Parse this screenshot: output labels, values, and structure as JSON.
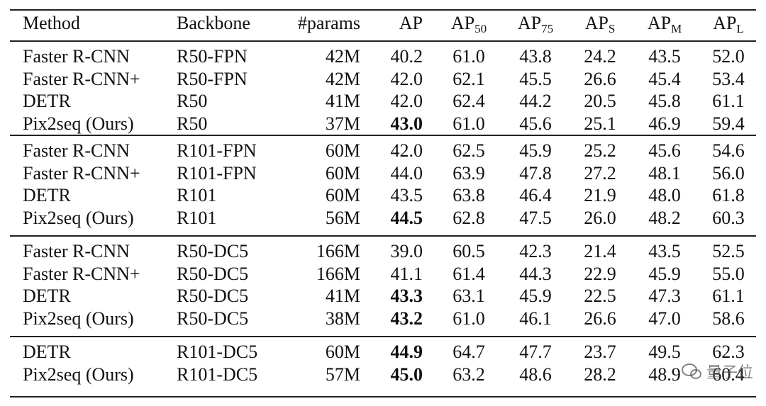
{
  "table": {
    "header": [
      {
        "text": "Method"
      },
      {
        "text": "Backbone"
      },
      {
        "text": "#params"
      },
      {
        "text": "AP"
      },
      {
        "text": "AP",
        "sub": "50"
      },
      {
        "text": "AP",
        "sub": "75"
      },
      {
        "text": "AP",
        "sub": "S"
      },
      {
        "text": "AP",
        "sub": "M"
      },
      {
        "text": "AP",
        "sub": "L"
      }
    ],
    "groups": [
      [
        {
          "cells": [
            "Faster R-CNN",
            "R50-FPN",
            "42M",
            "40.2",
            "61.0",
            "43.8",
            "24.2",
            "43.5",
            "52.0"
          ],
          "bold_ap": false
        },
        {
          "cells": [
            "Faster R-CNN+",
            "R50-FPN",
            "42M",
            "42.0",
            "62.1",
            "45.5",
            "26.6",
            "45.4",
            "53.4"
          ],
          "bold_ap": false
        },
        {
          "cells": [
            "DETR",
            "R50",
            "41M",
            "42.0",
            "62.4",
            "44.2",
            "20.5",
            "45.8",
            "61.1"
          ],
          "bold_ap": false
        },
        {
          "cells": [
            "Pix2seq (Ours)",
            "R50",
            "37M",
            "43.0",
            "61.0",
            "45.6",
            "25.1",
            "46.9",
            "59.4"
          ],
          "bold_ap": true
        }
      ],
      [
        {
          "cells": [
            "Faster R-CNN",
            "R101-FPN",
            "60M",
            "42.0",
            "62.5",
            "45.9",
            "25.2",
            "45.6",
            "54.6"
          ],
          "bold_ap": false
        },
        {
          "cells": [
            "Faster R-CNN+",
            "R101-FPN",
            "60M",
            "44.0",
            "63.9",
            "47.8",
            "27.2",
            "48.1",
            "56.0"
          ],
          "bold_ap": false
        },
        {
          "cells": [
            "DETR",
            "R101",
            "60M",
            "43.5",
            "63.8",
            "46.4",
            "21.9",
            "48.0",
            "61.8"
          ],
          "bold_ap": false
        },
        {
          "cells": [
            "Pix2seq (Ours)",
            "R101",
            "56M",
            "44.5",
            "62.8",
            "47.5",
            "26.0",
            "48.2",
            "60.3"
          ],
          "bold_ap": true
        }
      ],
      [
        {
          "cells": [
            "Faster R-CNN",
            "R50-DC5",
            "166M",
            "39.0",
            "60.5",
            "42.3",
            "21.4",
            "43.5",
            "52.5"
          ],
          "bold_ap": false
        },
        {
          "cells": [
            "Faster R-CNN+",
            "R50-DC5",
            "166M",
            "41.1",
            "61.4",
            "44.3",
            "22.9",
            "45.9",
            "55.0"
          ],
          "bold_ap": false
        },
        {
          "cells": [
            "DETR",
            "R50-DC5",
            "41M",
            "43.3",
            "63.1",
            "45.9",
            "22.5",
            "47.3",
            "61.1"
          ],
          "bold_ap": true
        },
        {
          "cells": [
            "Pix2seq (Ours)",
            "R50-DC5",
            "38M",
            "43.2",
            "61.0",
            "46.1",
            "26.6",
            "47.0",
            "58.6"
          ],
          "bold_ap": true
        }
      ],
      [
        {
          "cells": [
            "DETR",
            "R101-DC5",
            "60M",
            "44.9",
            "64.7",
            "47.7",
            "23.7",
            "49.5",
            "62.3"
          ],
          "bold_ap": true
        },
        {
          "cells": [
            "Pix2seq (Ours)",
            "R101-DC5",
            "57M",
            "45.0",
            "63.2",
            "48.6",
            "28.2",
            "48.9",
            "60.4"
          ],
          "bold_ap": true
        }
      ]
    ],
    "watermark": "量子位"
  }
}
